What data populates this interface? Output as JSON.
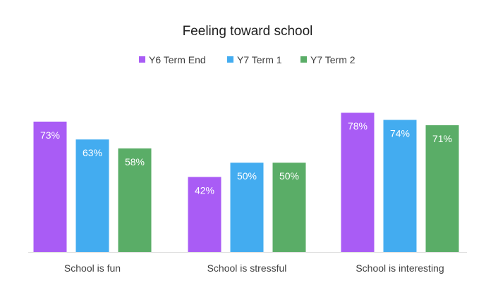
{
  "chart_data": {
    "type": "bar",
    "title": "Feeling toward school",
    "categories": [
      "School is fun",
      "School is stressful",
      "School is interesting"
    ],
    "series": [
      {
        "name": "Y6 Term End",
        "color": "#a95cf5",
        "values": [
          73,
          42,
          78
        ],
        "labels": [
          "73%",
          "42%",
          "78%"
        ]
      },
      {
        "name": "Y7 Term 1",
        "color": "#43acf0",
        "values": [
          63,
          50,
          74
        ],
        "labels": [
          "63%",
          "50%",
          "74%"
        ]
      },
      {
        "name": "Y7 Term 2",
        "color": "#5aad67",
        "values": [
          58,
          50,
          71
        ],
        "labels": [
          "58%",
          "50%",
          "71%"
        ]
      }
    ],
    "xlabel": "",
    "ylabel": "",
    "ylim": [
      0,
      82
    ],
    "grid": false,
    "legend_position": "top-center",
    "baseline_color": "#d9d9d9"
  }
}
